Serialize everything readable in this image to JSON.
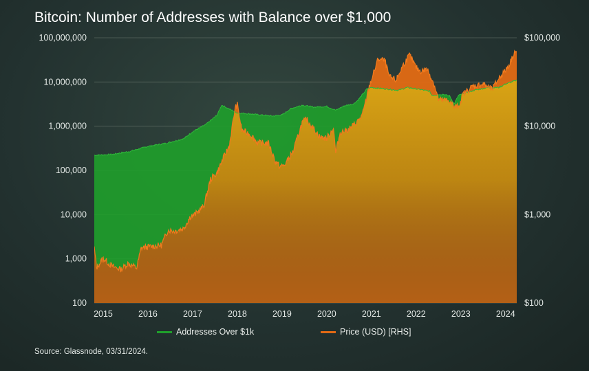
{
  "title": "Bitcoin: Number of Addresses with Balance over $1,000",
  "source": "Source: Glassnode, 03/31/2024.",
  "colors": {
    "addresses": "#1fa02b",
    "price": "#e26a14",
    "fill_gold": "#c4960e",
    "grid": "#6b786f"
  },
  "legend": {
    "addresses": "Addresses Over $1k",
    "price": "Price (USD) [RHS]"
  },
  "chart_data": {
    "type": "area",
    "title": "Bitcoin: Number of Addresses with Balance over $1,000",
    "y_left": {
      "scale": "log",
      "range": [
        100,
        100000000
      ],
      "ticks": [
        "100,000,000",
        "10,000,000",
        "1,000,000",
        "100,000",
        "10,000",
        "1,000",
        "100"
      ]
    },
    "y_right": {
      "scale": "log",
      "range": [
        100,
        100000
      ],
      "ticks": [
        "$100,000",
        "$10,000",
        "$1,000",
        "$100"
      ]
    },
    "x_ticks": [
      "2015",
      "2016",
      "2017",
      "2018",
      "2019",
      "2020",
      "2021",
      "2022",
      "2023",
      "2024"
    ],
    "x_range": [
      2014.8,
      2024.25
    ],
    "grid": true,
    "legend_position": "bottom",
    "series": [
      {
        "name": "Addresses Over $1k",
        "axis": "left",
        "points": [
          [
            2014.8,
            220000
          ],
          [
            2015.2,
            230000
          ],
          [
            2015.6,
            270000
          ],
          [
            2016.0,
            350000
          ],
          [
            2016.4,
            410000
          ],
          [
            2016.8,
            520000
          ],
          [
            2017.0,
            750000
          ],
          [
            2017.3,
            1100000
          ],
          [
            2017.55,
            1800000
          ],
          [
            2017.65,
            3000000
          ],
          [
            2017.8,
            2500000
          ],
          [
            2018.0,
            2000000
          ],
          [
            2018.3,
            1900000
          ],
          [
            2018.5,
            1800000
          ],
          [
            2018.8,
            1700000
          ],
          [
            2019.0,
            1800000
          ],
          [
            2019.2,
            2500000
          ],
          [
            2019.45,
            3000000
          ],
          [
            2019.7,
            2700000
          ],
          [
            2020.0,
            2800000
          ],
          [
            2020.2,
            2300000
          ],
          [
            2020.4,
            2900000
          ],
          [
            2020.6,
            3200000
          ],
          [
            2020.7,
            3900000
          ],
          [
            2020.9,
            7000000
          ],
          [
            2021.0,
            7500000
          ],
          [
            2021.3,
            7000000
          ],
          [
            2021.6,
            6500000
          ],
          [
            2021.8,
            7500000
          ],
          [
            2022.0,
            7000000
          ],
          [
            2022.3,
            6200000
          ],
          [
            2022.35,
            5000000
          ],
          [
            2022.6,
            5300000
          ],
          [
            2022.75,
            4800000
          ],
          [
            2022.85,
            3200000
          ],
          [
            2022.95,
            5000000
          ],
          [
            2023.3,
            6500000
          ],
          [
            2023.6,
            7500000
          ],
          [
            2023.85,
            7500000
          ],
          [
            2024.0,
            9000000
          ],
          [
            2024.25,
            11000000
          ]
        ]
      },
      {
        "name": "Price (USD) [RHS]",
        "axis": "right",
        "points": [
          [
            2014.8,
            420
          ],
          [
            2014.85,
            250
          ],
          [
            2015.0,
            320
          ],
          [
            2015.2,
            260
          ],
          [
            2015.4,
            240
          ],
          [
            2015.55,
            280
          ],
          [
            2015.75,
            250
          ],
          [
            2015.85,
            420
          ],
          [
            2016.0,
            430
          ],
          [
            2016.3,
            450
          ],
          [
            2016.45,
            670
          ],
          [
            2016.6,
            650
          ],
          [
            2016.8,
            700
          ],
          [
            2016.95,
            950
          ],
          [
            2017.05,
            1000
          ],
          [
            2017.25,
            1250
          ],
          [
            2017.4,
            2500
          ],
          [
            2017.55,
            3000
          ],
          [
            2017.7,
            4500
          ],
          [
            2017.82,
            6000
          ],
          [
            2017.95,
            16000
          ],
          [
            2018.0,
            17500
          ],
          [
            2018.1,
            9000
          ],
          [
            2018.3,
            8000
          ],
          [
            2018.45,
            6500
          ],
          [
            2018.7,
            6400
          ],
          [
            2018.85,
            4000
          ],
          [
            2018.95,
            3500
          ],
          [
            2019.05,
            3600
          ],
          [
            2019.25,
            5200
          ],
          [
            2019.45,
            11000
          ],
          [
            2019.55,
            12000
          ],
          [
            2019.7,
            9500
          ],
          [
            2019.85,
            7500
          ],
          [
            2020.0,
            7300
          ],
          [
            2020.15,
            9500
          ],
          [
            2020.2,
            5000
          ],
          [
            2020.3,
            8500
          ],
          [
            2020.5,
            9200
          ],
          [
            2020.7,
            11500
          ],
          [
            2020.8,
            13500
          ],
          [
            2020.95,
            28000
          ],
          [
            2021.05,
            40000
          ],
          [
            2021.15,
            58000
          ],
          [
            2021.3,
            55000
          ],
          [
            2021.4,
            36000
          ],
          [
            2021.55,
            33000
          ],
          [
            2021.7,
            48000
          ],
          [
            2021.85,
            64000
          ],
          [
            2022.0,
            46000
          ],
          [
            2022.1,
            42000
          ],
          [
            2022.25,
            44000
          ],
          [
            2022.4,
            30000
          ],
          [
            2022.5,
            20000
          ],
          [
            2022.75,
            19500
          ],
          [
            2022.85,
            16500
          ],
          [
            2022.95,
            16800
          ],
          [
            2023.05,
            23000
          ],
          [
            2023.25,
            28000
          ],
          [
            2023.5,
            30000
          ],
          [
            2023.7,
            26000
          ],
          [
            2023.85,
            35000
          ],
          [
            2024.0,
            43000
          ],
          [
            2024.1,
            52000
          ],
          [
            2024.2,
            70000
          ],
          [
            2024.25,
            69000
          ]
        ]
      }
    ]
  }
}
